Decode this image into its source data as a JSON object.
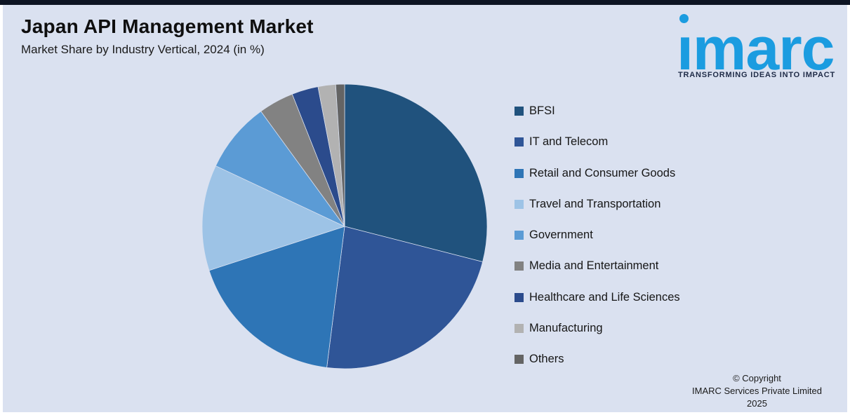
{
  "header": {
    "title": "Japan API Management Market",
    "subtitle": "Market Share by Industry Vertical, 2024 (in %)"
  },
  "logo": {
    "wordmark": "imarc",
    "tagline": "TRANSFORMING IDEAS INTO IMPACT",
    "brand_color": "#1B9CE0",
    "tagline_color": "#1F2B47"
  },
  "footer": {
    "copyright_line1": "© Copyright",
    "copyright_line2": "IMARC Services Private Limited 2025"
  },
  "colors": {
    "page_background": "#FFFFFF",
    "panel_background": "#DAE1F0",
    "top_bar": "#0D1423",
    "text": "#1A1A1A"
  },
  "chart_data": {
    "type": "pie",
    "title": "Japan API Management Market",
    "subtitle": "Market Share by Industry Vertical, 2024 (in %)",
    "unit": "%",
    "start_angle_deg": 0,
    "direction": "clockwise",
    "legend_position": "right",
    "data_labels_shown": false,
    "categories": [
      "BFSI",
      "IT and Telecom",
      "Retail and Consumer Goods",
      "Travel and Transportation",
      "Government",
      "Media and Entertainment",
      "Healthcare and Life Sciences",
      "Manufacturing",
      "Others"
    ],
    "values": [
      29,
      23,
      18,
      12,
      8,
      4,
      3,
      2,
      1
    ],
    "colors": [
      "#20527D",
      "#2F5597",
      "#2E75B6",
      "#9DC3E6",
      "#5B9BD5",
      "#828282",
      "#2B4B8C",
      "#B2B2B2",
      "#646464"
    ]
  }
}
